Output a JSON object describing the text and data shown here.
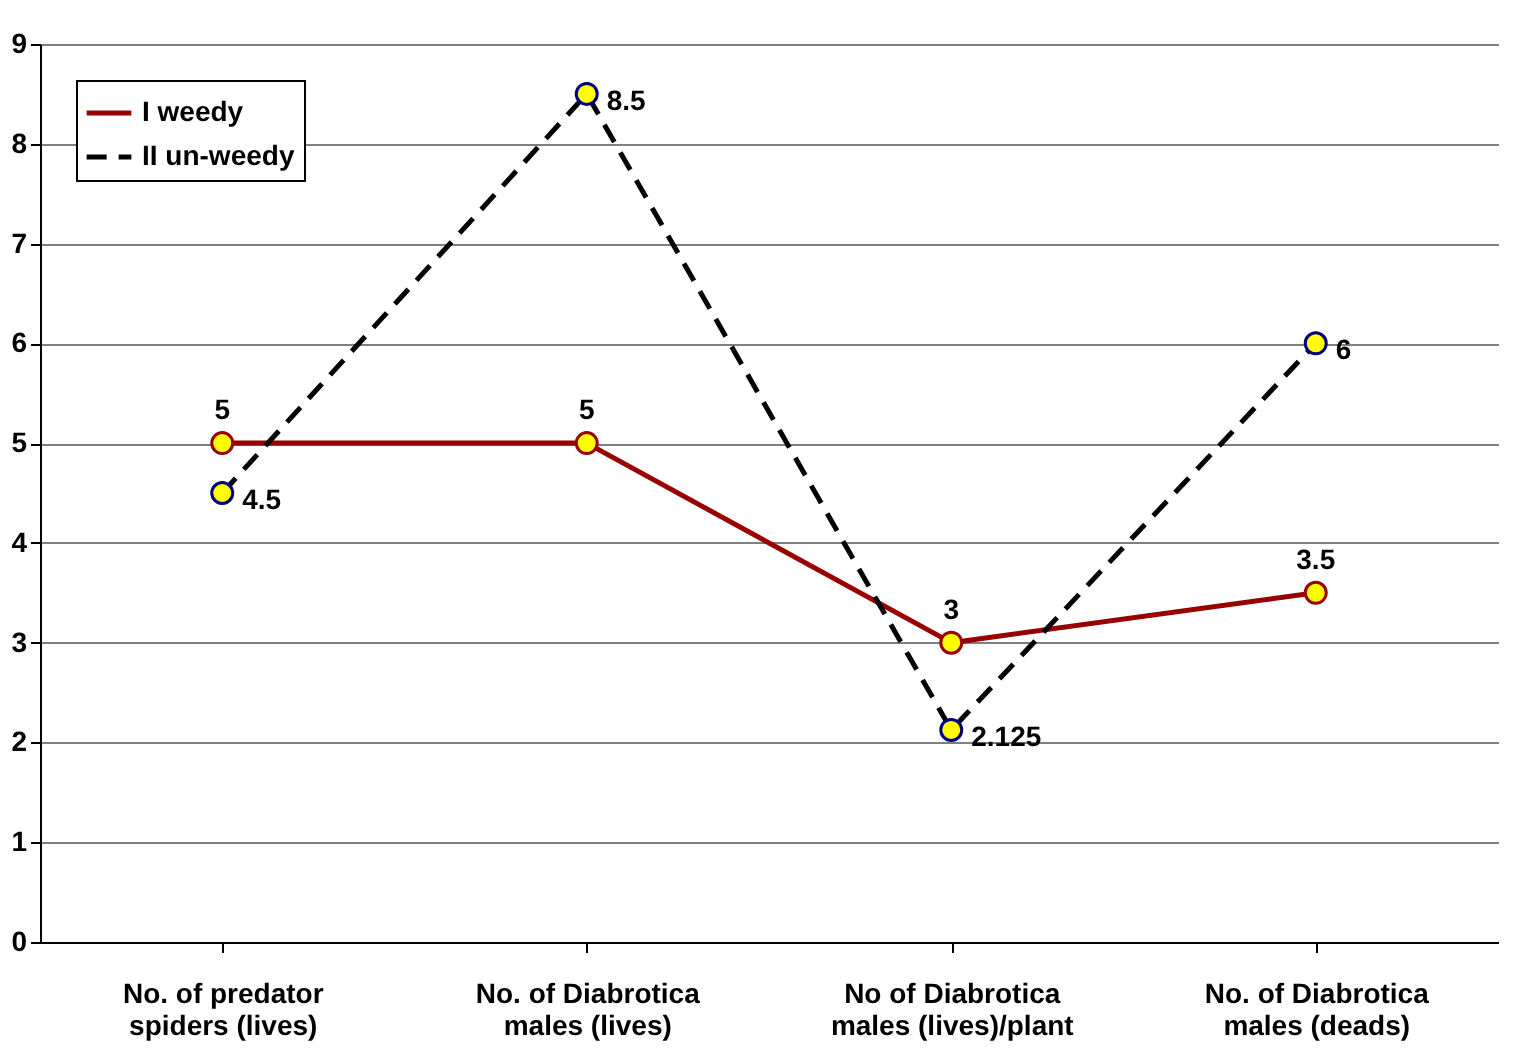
{
  "chart_data": {
    "type": "line",
    "categories": [
      "No. of  predator\nspiders  (lives)",
      "No. of Diabrotica\nmales (lives)",
      "No of Diabrotica\nmales (lives)/plant",
      "No. of Diabrotica\nmales (deads)"
    ],
    "series": [
      {
        "name": "I weedy",
        "color": "#990000",
        "line_style": "solid",
        "values": [
          5,
          5,
          3,
          3.5
        ]
      },
      {
        "name": "II un-weedy",
        "color": "#000000",
        "line_style": "dashed",
        "values": [
          4.5,
          8.5,
          2.125,
          6
        ]
      }
    ],
    "ylim": [
      0,
      9
    ],
    "yticks": [
      0,
      1,
      2,
      3,
      4,
      5,
      6,
      7,
      8,
      9
    ],
    "grid": "y",
    "legend": "top left",
    "marker": "circle",
    "data_labels": true
  }
}
